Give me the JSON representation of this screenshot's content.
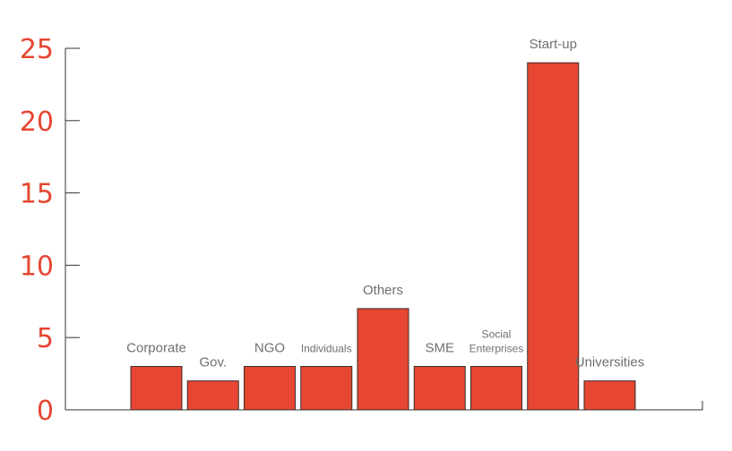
{
  "chart_data": {
    "type": "bar",
    "title": "",
    "xlabel": "",
    "ylabel": "",
    "categories": [
      "Corporate",
      "Gov.",
      "NGO",
      "Individuals",
      "Others",
      "SME",
      "Social Enterprises",
      "Start-up",
      "Universities"
    ],
    "label_lines": [
      [
        "Corporate"
      ],
      [
        "Gov."
      ],
      [
        "NGO"
      ],
      [
        "Individuals"
      ],
      [
        "Others"
      ],
      [
        "SME"
      ],
      [
        "Social",
        "Enterprises"
      ],
      [
        "Start-up"
      ],
      [
        "Universities"
      ]
    ],
    "values": [
      3,
      2,
      3,
      3,
      7,
      3,
      3,
      24,
      2
    ],
    "ylim": [
      0,
      25
    ],
    "yticks": [
      "0",
      "5",
      "10",
      "15",
      "20",
      "25"
    ],
    "grid": false,
    "legend": "none",
    "colors": {
      "bar": "#e64632",
      "axis_tick_text": "#e64632",
      "bar_label_text": "#6f6f6f",
      "axis_line": "#333333"
    }
  }
}
